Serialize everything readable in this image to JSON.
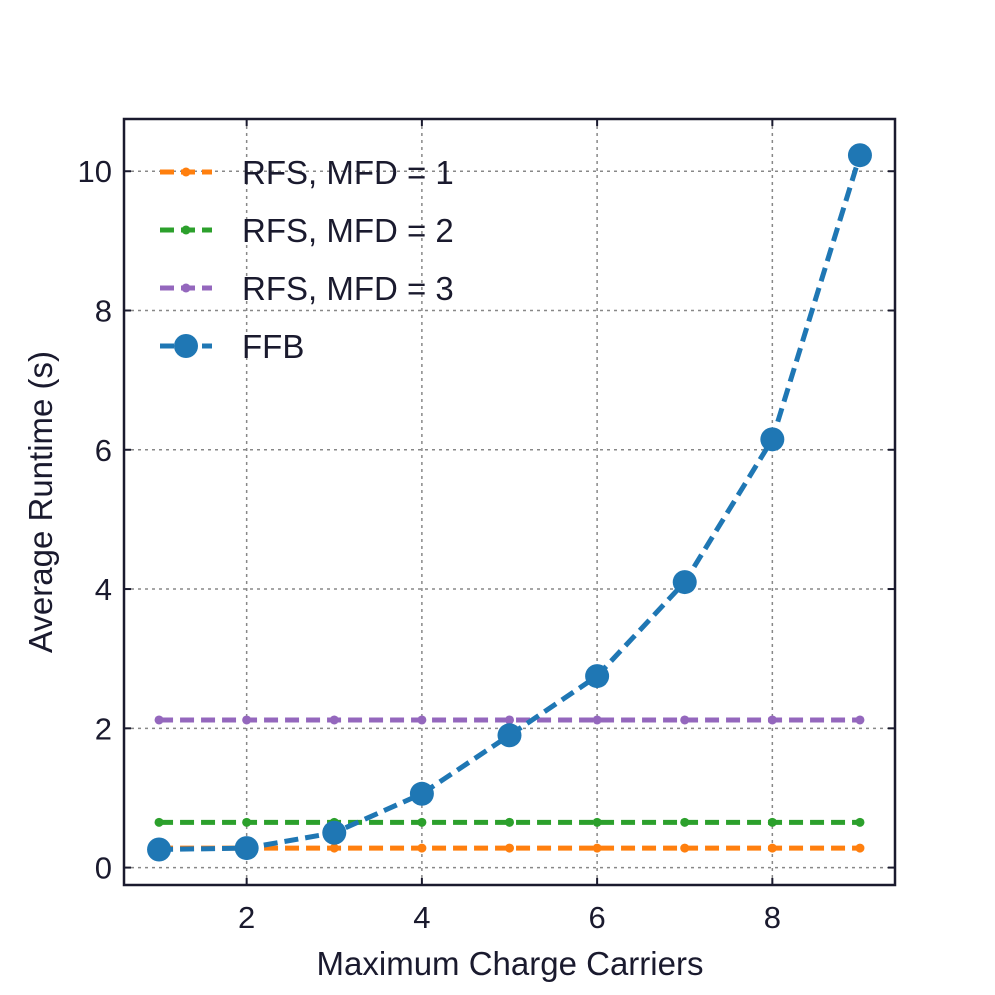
{
  "chart_data": {
    "type": "line",
    "xlabel": "Maximum Charge Carriers",
    "ylabel": "Average Runtime (s)",
    "xlim": [
      0.6,
      9.4
    ],
    "ylim": [
      -0.25,
      10.75
    ],
    "xticks": [
      2,
      4,
      6,
      8
    ],
    "yticks": [
      0,
      2,
      4,
      6,
      8,
      10
    ],
    "grid": true,
    "legend_position": "upper-left",
    "x": [
      1,
      2,
      3,
      4,
      5,
      6,
      7,
      8,
      9
    ],
    "series": [
      {
        "name": "RFS, MFD = 1",
        "color": "#ff7f0e",
        "marker": "small-dot",
        "line": "dashed",
        "values": [
          0.28,
          0.28,
          0.28,
          0.28,
          0.28,
          0.28,
          0.28,
          0.28,
          0.28
        ]
      },
      {
        "name": "RFS, MFD = 2",
        "color": "#2ca02c",
        "marker": "small-dot",
        "line": "dashed",
        "values": [
          0.65,
          0.65,
          0.65,
          0.65,
          0.65,
          0.65,
          0.65,
          0.65,
          0.65
        ]
      },
      {
        "name": "RFS, MFD = 3",
        "color": "#9467bd",
        "marker": "small-dot",
        "line": "dashed",
        "values": [
          2.12,
          2.12,
          2.12,
          2.12,
          2.12,
          2.12,
          2.12,
          2.12,
          2.12
        ]
      },
      {
        "name": "FFB",
        "color": "#1f77b4",
        "marker": "large-dot",
        "line": "dashed",
        "values": [
          0.26,
          0.28,
          0.5,
          1.06,
          1.9,
          2.75,
          4.1,
          6.15,
          10.23
        ]
      }
    ]
  }
}
